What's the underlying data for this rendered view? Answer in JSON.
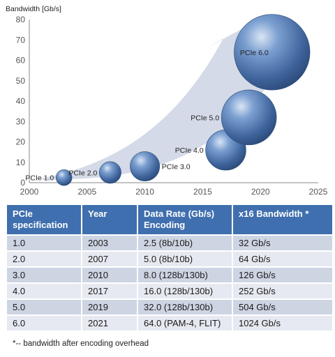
{
  "chart_data": {
    "type": "scatter",
    "ylabel": "Bandwidth [Gb/s]",
    "xlabel": "",
    "xlim": [
      2000,
      2025
    ],
    "ylim": [
      0,
      80
    ],
    "x_ticks": [
      "2000",
      "2005",
      "2010",
      "2015",
      "2020",
      "2025"
    ],
    "y_ticks": [
      "0",
      "10",
      "20",
      "30",
      "40",
      "50",
      "60",
      "70",
      "80"
    ],
    "grid": false,
    "bubble_color": "#4f78b0",
    "arrow_color": "#cfd6e4",
    "points": [
      {
        "label": "PCIe 1.0",
        "x": 2003,
        "y": 2.5,
        "size": 32
      },
      {
        "label": "PCIe 2.0",
        "x": 2007,
        "y": 5,
        "size": 64
      },
      {
        "label": "PCIe 3.0",
        "x": 2010,
        "y": 8,
        "size": 126
      },
      {
        "label": "PCIe 4.0",
        "x": 2017,
        "y": 16,
        "size": 252
      },
      {
        "label": "PCIe 5.0",
        "x": 2019,
        "y": 32,
        "size": 504
      },
      {
        "label": "PCIe 6.0",
        "x": 2021,
        "y": 64,
        "size": 1024
      }
    ]
  },
  "table": {
    "headers": [
      "PCIe specification",
      "Year",
      "Data Rate (Gb/s) Encoding",
      "x16 Bandwidth *"
    ],
    "rows": [
      [
        "1.0",
        "2003",
        "2.5 (8b/10b)",
        "32 Gb/s"
      ],
      [
        "2.0",
        "2007",
        "5.0 (8b/10b)",
        "64 Gb/s"
      ],
      [
        "3.0",
        "2010",
        "8.0 (128b/130b)",
        "126 Gb/s"
      ],
      [
        "4.0",
        "2017",
        "16.0 (128b/130b)",
        "252 Gb/s"
      ],
      [
        "5.0",
        "2019",
        "32.0 (128b/130b)",
        "504 Gb/s"
      ],
      [
        "6.0",
        "2021",
        "64.0 (PAM-4, FLIT)",
        "1024 Gb/s"
      ]
    ]
  },
  "footnote": "*-- bandwidth after encoding overhead"
}
